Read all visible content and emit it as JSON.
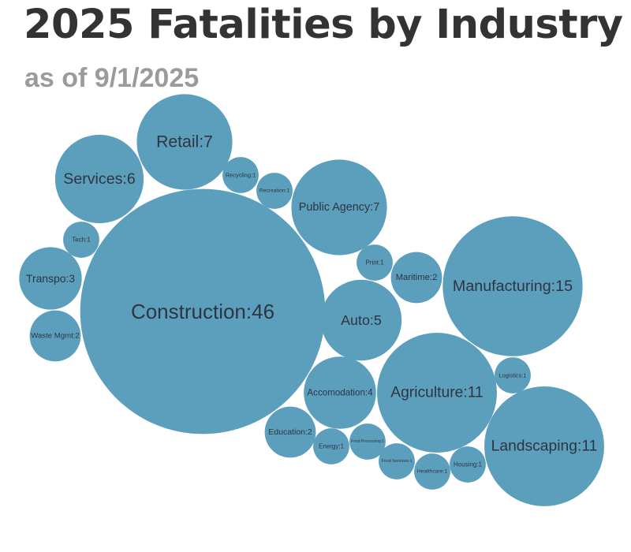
{
  "title": "2025 Fatalities by Industry",
  "subtitle": "as of 9/1/2025",
  "colors": {
    "bubble": "#5b9fbd",
    "label": "#2f3540",
    "title": "#333333",
    "subtitle": "#9b9b9b"
  },
  "chart_data": {
    "type": "bubble",
    "title": "2025 Fatalities by Industry",
    "subtitle": "as of 9/1/2025",
    "items": [
      {
        "label": "Construction",
        "value": 46
      },
      {
        "label": "Manufacturing",
        "value": 15
      },
      {
        "label": "Agriculture",
        "value": 11
      },
      {
        "label": "Landscaping",
        "value": 11
      },
      {
        "label": "Retail",
        "value": 7
      },
      {
        "label": "Public Agency",
        "value": 7
      },
      {
        "label": "Services",
        "value": 6
      },
      {
        "label": "Auto",
        "value": 5
      },
      {
        "label": "Accomodation",
        "value": 4
      },
      {
        "label": "Transpo",
        "value": 3
      },
      {
        "label": "Waste Mgmt",
        "value": 2
      },
      {
        "label": "Education",
        "value": 2
      },
      {
        "label": "Maritime",
        "value": 2
      },
      {
        "label": "Tech",
        "value": 1
      },
      {
        "label": "Recycling",
        "value": 1
      },
      {
        "label": "Recreation",
        "value": 1
      },
      {
        "label": "Print",
        "value": 1
      },
      {
        "label": "Energy",
        "value": 1
      },
      {
        "label": "Food Processing",
        "value": 1
      },
      {
        "label": "Food Services",
        "value": 1
      },
      {
        "label": "Healthcare",
        "value": 1
      },
      {
        "label": "Housing",
        "value": 1
      },
      {
        "label": "Logistics",
        "value": 1
      }
    ]
  }
}
